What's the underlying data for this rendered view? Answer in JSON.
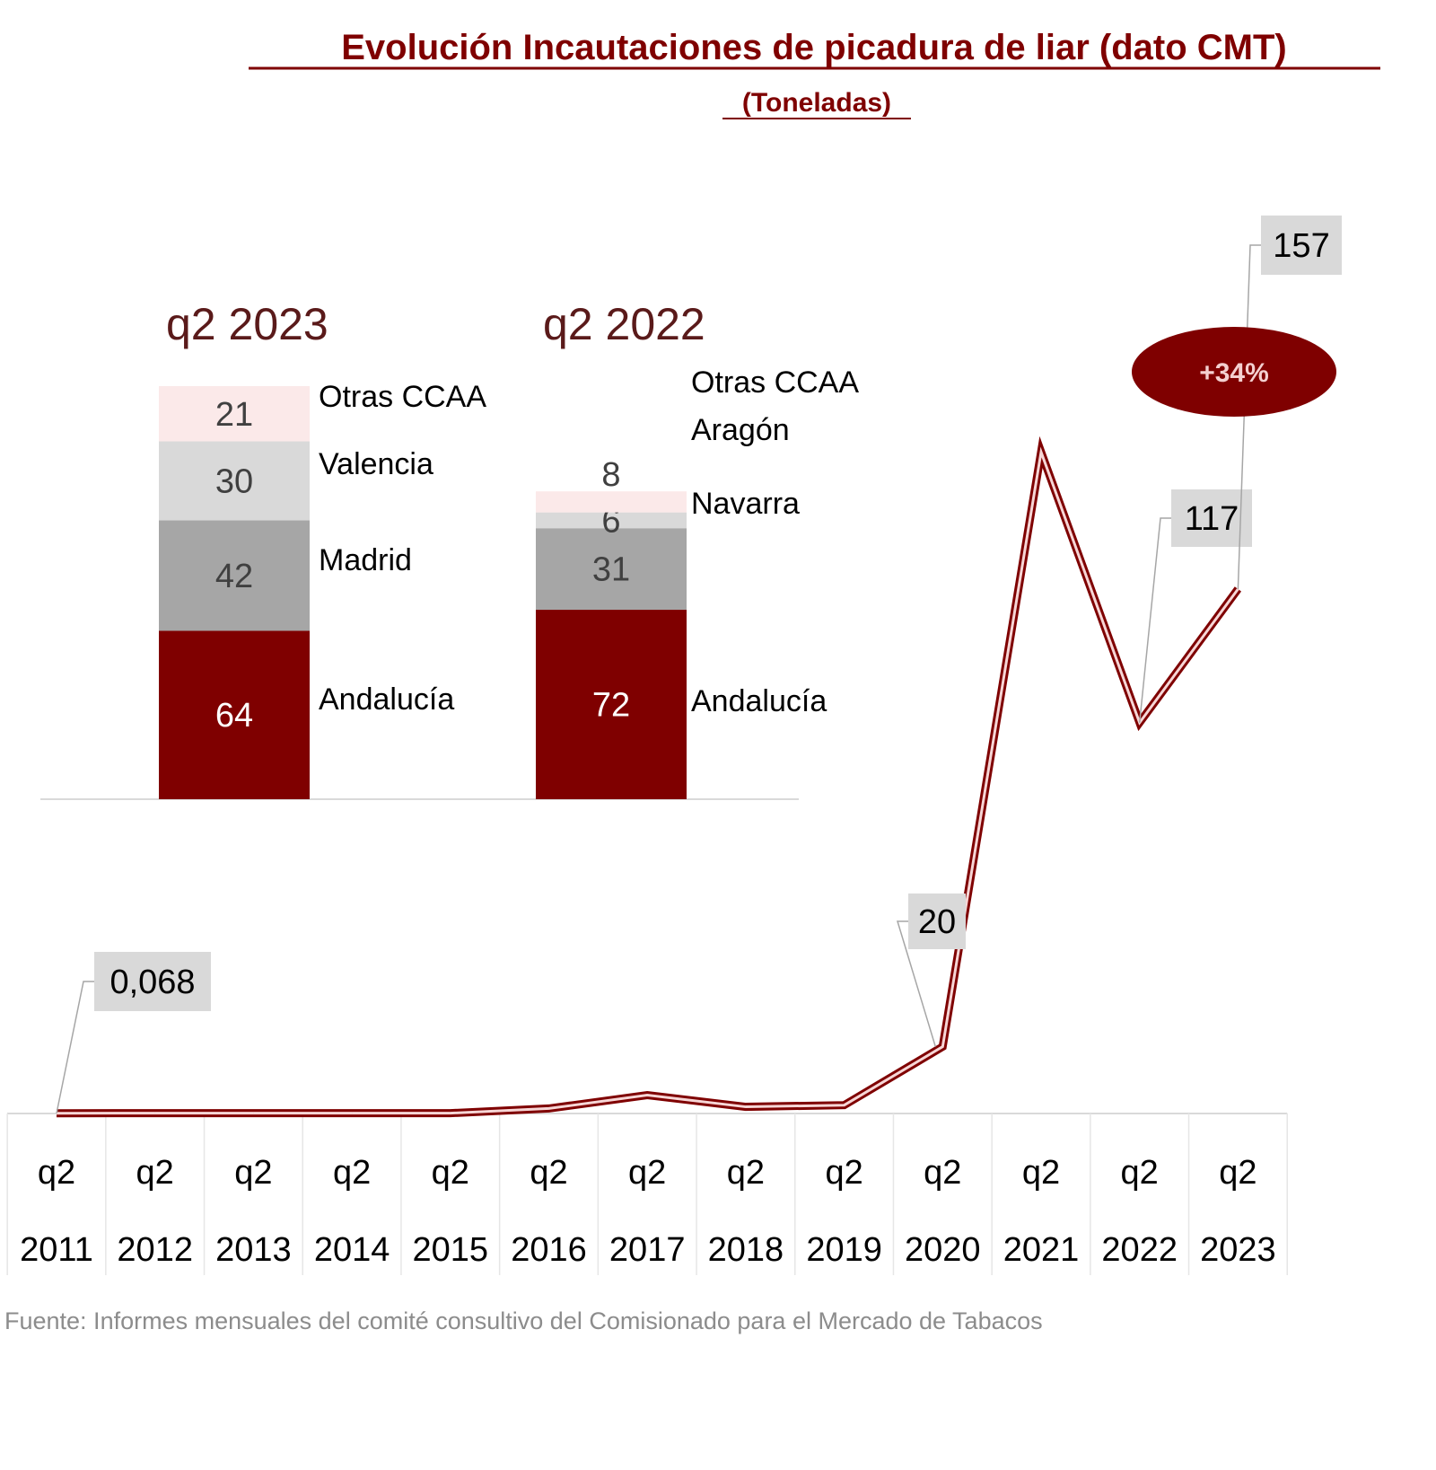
{
  "chart_data": [
    {
      "type": "line",
      "title": "Evolución Incautaciones de picadura de liar (dato CMT)",
      "subtitle": "(Toneladas)",
      "categories": [
        "q2 2011",
        "q2 2012",
        "q2 2013",
        "q2 2014",
        "q2 2015",
        "q2 2016",
        "q2 2017",
        "q2 2018",
        "q2 2019",
        "q2 2020",
        "q2 2021",
        "q2 2022",
        "q2 2023"
      ],
      "category_lines": [
        [
          "q2",
          "2011"
        ],
        [
          "q2",
          "2012"
        ],
        [
          "q2",
          "2013"
        ],
        [
          "q2",
          "2014"
        ],
        [
          "q2",
          "2015"
        ],
        [
          "q2",
          "2016"
        ],
        [
          "q2",
          "2017"
        ],
        [
          "q2",
          "2018"
        ],
        [
          "q2",
          "2019"
        ],
        [
          "q2",
          "2020"
        ],
        [
          "q2",
          "2021"
        ],
        [
          "q2",
          "2022"
        ],
        [
          "q2",
          "2023"
        ]
      ],
      "values": [
        0.068,
        0.1,
        0.1,
        0.1,
        0.1,
        1.5,
        5.5,
        2,
        2.5,
        20,
        198,
        117,
        157
      ],
      "data_labels": [
        {
          "index": 0,
          "text": "0,068"
        },
        {
          "index": 9,
          "text": "20"
        },
        {
          "index": 11,
          "text": "117"
        },
        {
          "index": 12,
          "text": "157"
        }
      ],
      "annotation": "+34%",
      "ylim": [
        0,
        200
      ],
      "grid": false,
      "colors": {
        "line": "#7f0000",
        "label_box": "#d9d9d9",
        "annotation": "#7f0000"
      }
    },
    {
      "type": "bar",
      "stacked": true,
      "categories": [
        "q2 2023",
        "q2 2022"
      ],
      "bars": [
        {
          "title": "q2 2023",
          "segments": [
            {
              "name": "Andalucía",
              "value": 64,
              "color": "#7f0000",
              "label_color": "#ffffff"
            },
            {
              "name": "Madrid",
              "value": 42,
              "color": "#a6a6a6",
              "label_color": "#404040"
            },
            {
              "name": "Valencia",
              "value": 30,
              "color": "#d9d9d9",
              "label_color": "#404040"
            },
            {
              "name": "Otras CCAA",
              "value": 21,
              "color": "#fbe9e9",
              "label_color": "#404040"
            }
          ]
        },
        {
          "title": "q2 2022",
          "segments": [
            {
              "name": "Andalucía",
              "value": 72,
              "color": "#7f0000",
              "label_color": "#ffffff"
            },
            {
              "name": "Navarra",
              "value": 31,
              "color": "#a6a6a6",
              "label_color": "#404040"
            },
            {
              "name": "Aragón",
              "value": 6,
              "color": "#d9d9d9",
              "label_color": "#404040"
            },
            {
              "name": "Otras CCAA",
              "value": 8,
              "color": "#fbe9e9",
              "label_color": "#404040"
            }
          ]
        }
      ]
    }
  ],
  "footer": "Fuente: Informes mensuales del comité consultivo del Comisionado para el Mercado de Tabacos"
}
